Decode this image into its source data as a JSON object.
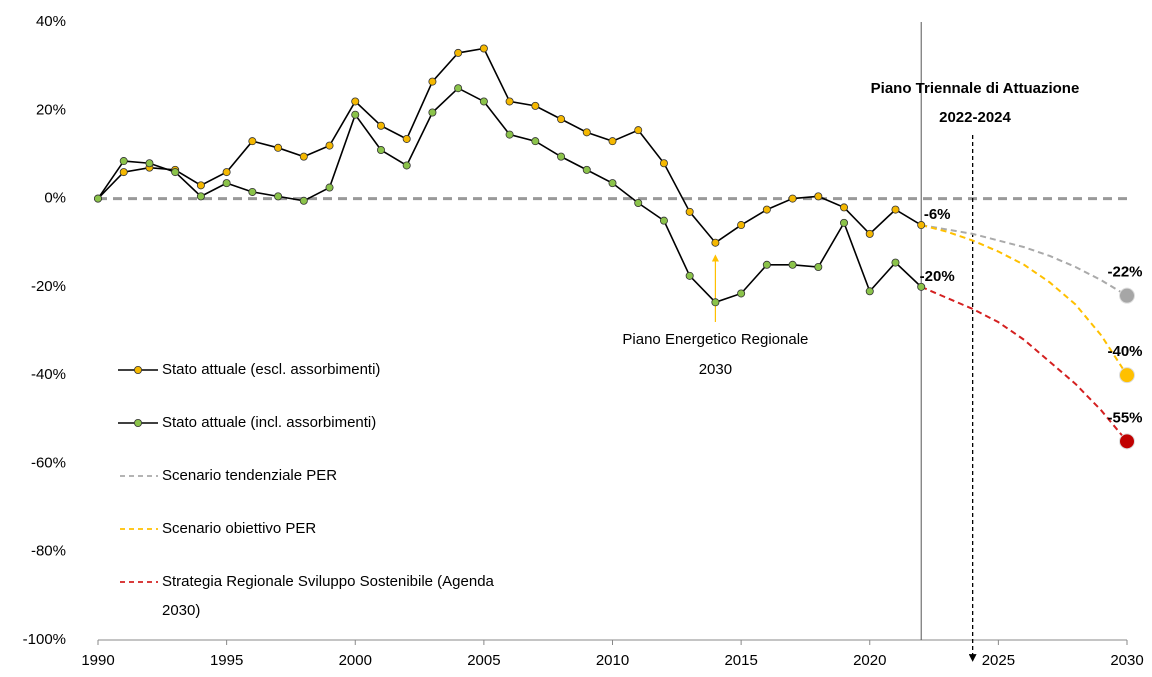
{
  "chart_data": {
    "type": "line",
    "xlim": [
      1990,
      2030
    ],
    "xticks": [
      1990,
      1995,
      2000,
      2005,
      2010,
      2015,
      2020,
      2025,
      2030
    ],
    "ylim": [
      -100,
      40
    ],
    "yticks": [
      {
        "value": -100,
        "label": "-100%"
      },
      {
        "value": -80,
        "label": "-80%"
      },
      {
        "value": -60,
        "label": "-60%"
      },
      {
        "value": -40,
        "label": "-40%"
      },
      {
        "value": -20,
        "label": "-20%"
      },
      {
        "value": 0,
        "label": "0%"
      },
      {
        "value": 20,
        "label": "20%"
      },
      {
        "value": 40,
        "label": "40%"
      }
    ],
    "reference_lines": [
      {
        "y": 0,
        "color": "#999999",
        "style": "dashed"
      },
      {
        "x": 2022,
        "color": "#555555",
        "style": "solid"
      },
      {
        "x": 2024,
        "color": "#000000",
        "style": "dashed-arrow"
      }
    ],
    "annotations": [
      {
        "text": "Piano Triennale di Attuazione",
        "color": "#000000"
      },
      {
        "text": "2022-2024",
        "color": "#000000"
      },
      {
        "text": "Piano Energetico Regionale",
        "color": "#ffc000",
        "x": 2014
      },
      {
        "text": "2030",
        "color": "#ffc000"
      }
    ],
    "series": [
      {
        "name": "Stato attuale (escl. assorbimenti)",
        "color": "#000000",
        "marker_color": "#f5b800",
        "style": "solid",
        "x": [
          1990,
          1991,
          1992,
          1993,
          1994,
          1995,
          1996,
          1997,
          1998,
          1999,
          2000,
          2001,
          2002,
          2003,
          2004,
          2005,
          2006,
          2007,
          2008,
          2009,
          2010,
          2011,
          2012,
          2013,
          2014,
          2015,
          2016,
          2017,
          2018,
          2019,
          2020,
          2021,
          2022
        ],
        "values": [
          0,
          6,
          7,
          6.5,
          3,
          6,
          13,
          11.5,
          9.5,
          12,
          22,
          16.5,
          13.5,
          26.5,
          33,
          34,
          22,
          21,
          18,
          15,
          13,
          15.5,
          8,
          -3,
          -10,
          -6,
          -2.5,
          0,
          0.5,
          -2,
          -8,
          -2.5,
          -6
        ],
        "value_labels": [
          null,
          null,
          null,
          null,
          null,
          null,
          null,
          null,
          null,
          null,
          null,
          null,
          null,
          null,
          null,
          null,
          null,
          null,
          null,
          null,
          null,
          null,
          null,
          null,
          null,
          null,
          null,
          null,
          null,
          null,
          null,
          null,
          "-6%"
        ]
      },
      {
        "name": "Stato attuale (incl. assorbimenti)",
        "color": "#000000",
        "marker_color": "#8bc34a",
        "style": "solid",
        "x": [
          1990,
          1991,
          1992,
          1993,
          1994,
          1995,
          1996,
          1997,
          1998,
          1999,
          2000,
          2001,
          2002,
          2003,
          2004,
          2005,
          2006,
          2007,
          2008,
          2009,
          2010,
          2011,
          2012,
          2013,
          2014,
          2015,
          2016,
          2017,
          2018,
          2019,
          2020,
          2021,
          2022
        ],
        "values": [
          0,
          8.5,
          8,
          6,
          0.5,
          3.5,
          1.5,
          0.5,
          -0.5,
          2.5,
          19,
          11,
          7.5,
          19.5,
          25,
          22,
          14.5,
          13,
          9.5,
          6.5,
          3.5,
          -1,
          -5,
          -17.5,
          -23.5,
          -21.5,
          -15,
          -15,
          -15.5,
          -5.5,
          -21,
          -14.5,
          -20
        ],
        "value_labels": [
          null,
          null,
          null,
          null,
          null,
          null,
          null,
          null,
          null,
          null,
          null,
          null,
          null,
          null,
          null,
          null,
          null,
          null,
          null,
          null,
          null,
          null,
          null,
          null,
          null,
          null,
          null,
          null,
          null,
          null,
          null,
          null,
          "-20%"
        ]
      },
      {
        "name": "Scenario tendenziale PER",
        "color": "#aaaaaa",
        "marker_color": "#a6a6a6",
        "style": "dashed",
        "x": [
          2022,
          2023,
          2024,
          2025,
          2026,
          2027,
          2028,
          2029,
          2030
        ],
        "values": [
          -6,
          -7,
          -8,
          -9.5,
          -11,
          -13,
          -15.5,
          -18.5,
          -22
        ],
        "value_labels": [
          null,
          null,
          null,
          null,
          null,
          null,
          null,
          null,
          "-22%"
        ]
      },
      {
        "name": "Scenario obiettivo PER",
        "color": "#ffc000",
        "marker_color": "#ffc000",
        "style": "dashed",
        "x": [
          2022,
          2023,
          2024,
          2025,
          2026,
          2027,
          2028,
          2029,
          2030
        ],
        "values": [
          -6,
          -7.5,
          -9.5,
          -12,
          -15,
          -19,
          -24,
          -31,
          -40
        ],
        "value_labels": [
          null,
          null,
          null,
          null,
          null,
          null,
          null,
          null,
          "-40%"
        ]
      },
      {
        "name": "Strategia Regionale Sviluppo Sostenibile (Agenda 2030)",
        "color": "#d42020",
        "marker_color": "#c00000",
        "style": "dashed",
        "x": [
          2022,
          2023,
          2024,
          2025,
          2026,
          2027,
          2028,
          2029,
          2030
        ],
        "values": [
          -20,
          -22.5,
          -25,
          -28,
          -32,
          -37,
          -42,
          -48,
          -55
        ],
        "value_labels": [
          null,
          null,
          null,
          null,
          null,
          null,
          null,
          null,
          "-55%"
        ]
      }
    ]
  }
}
